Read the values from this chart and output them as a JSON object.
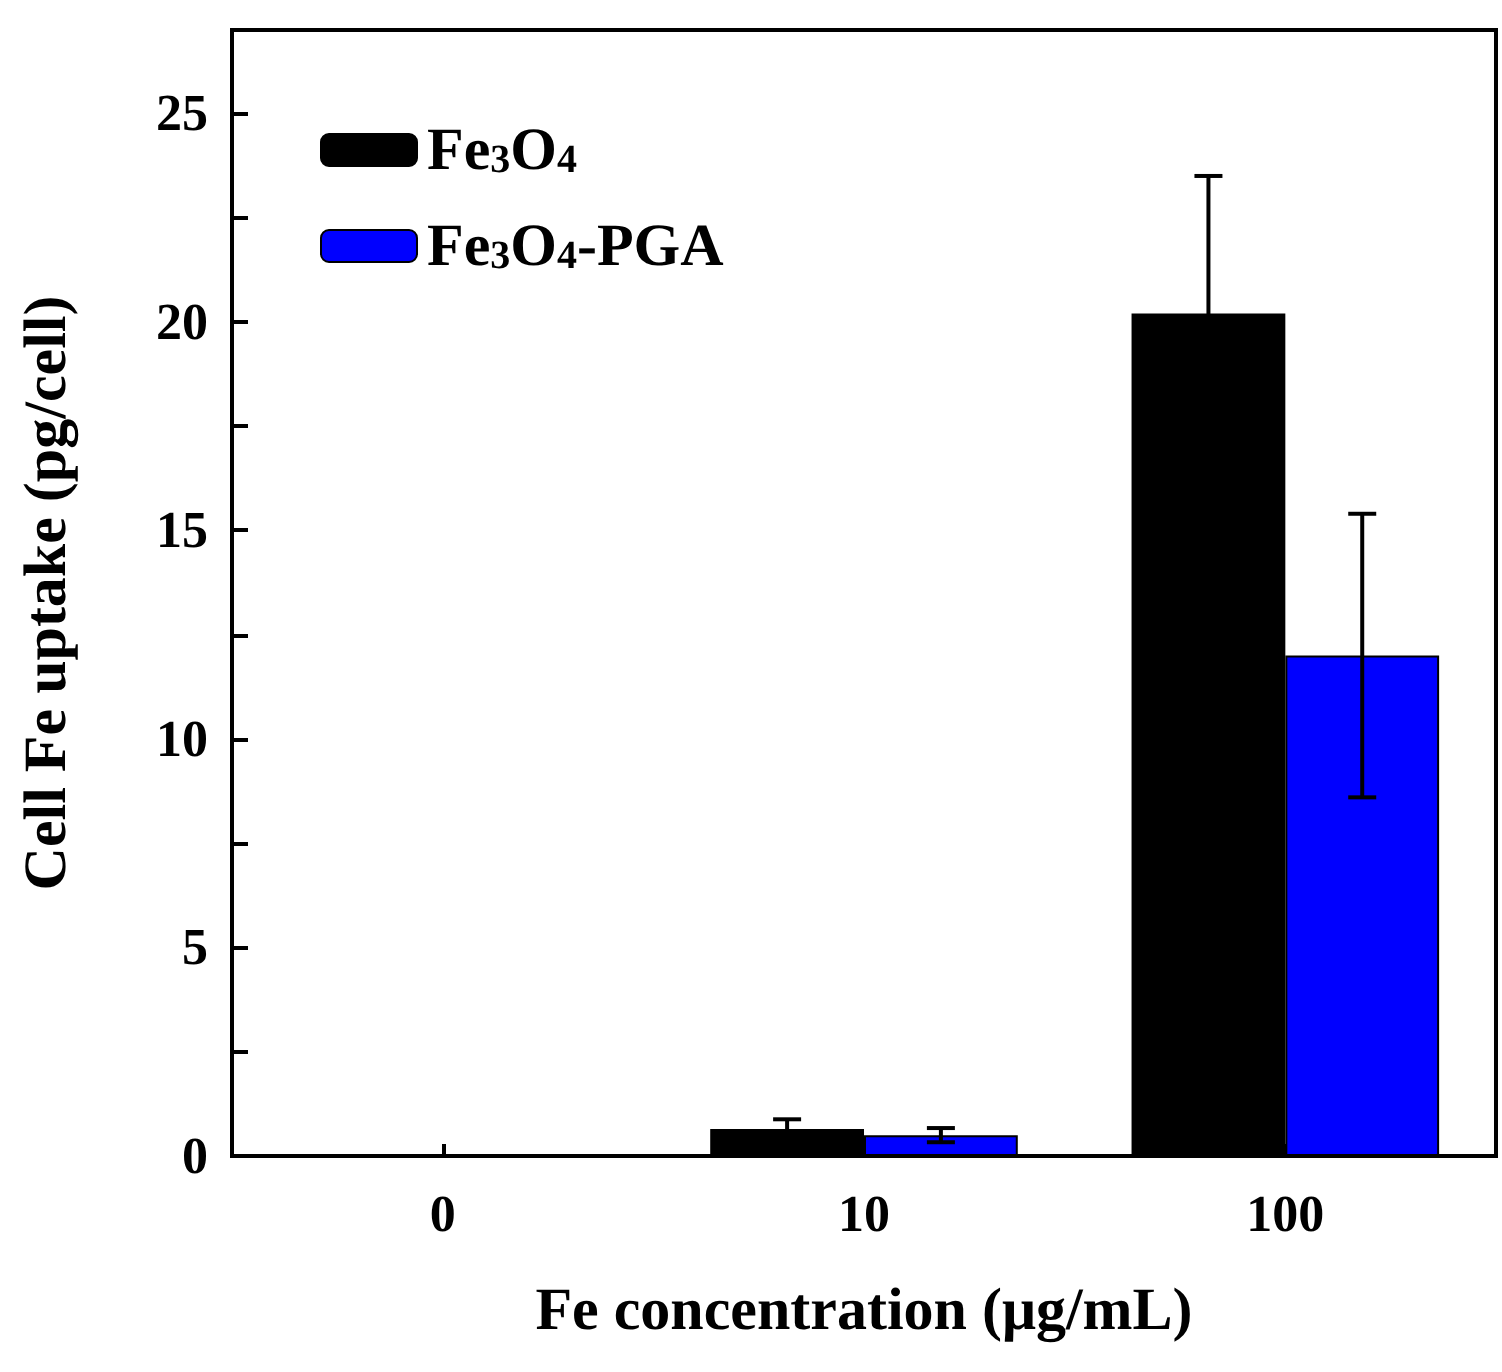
{
  "chart_data": {
    "type": "bar",
    "xlabel": "Fe concentration (μg/mL)",
    "ylabel": "Cell Fe uptake (pg/cell)",
    "categories": [
      "0",
      "10",
      "100"
    ],
    "series": [
      {
        "name": "Fe$_{3}$O$_{4}$",
        "color": "#000000",
        "values": [
          0.05,
          0.65,
          20.2
        ],
        "errors": [
          null,
          0.23,
          3.3
        ]
      },
      {
        "name": "Fe$_{3}$O$_{4}$-PGA",
        "color": "#0000ff",
        "values": [
          0.05,
          0.5,
          12.0
        ],
        "errors": [
          null,
          0.17,
          3.4
        ]
      }
    ],
    "ylim": [
      0,
      27
    ],
    "yticks": [
      0,
      {
        "value": 2.5,
        "label": null
      },
      5,
      {
        "value": 7.5,
        "label": null
      },
      10,
      {
        "value": 12.5,
        "label": null
      },
      15,
      {
        "value": 17.5,
        "label": null
      },
      20,
      {
        "value": 22.5,
        "label": null
      },
      25
    ],
    "grid": false,
    "legend": "top left"
  }
}
